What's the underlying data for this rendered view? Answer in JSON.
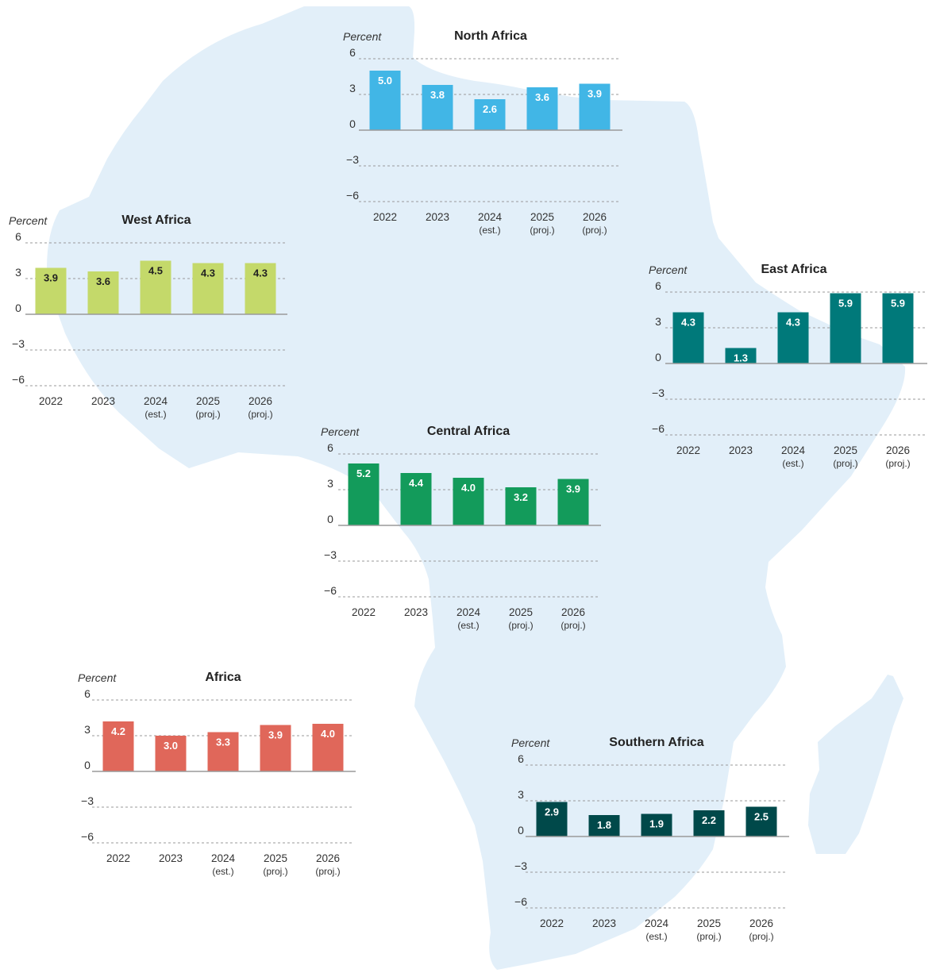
{
  "map": {
    "fill": "#e2eff9",
    "label": ""
  },
  "chart_data": [
    {
      "type": "bar",
      "title": "North Africa",
      "ylabel": "Percent",
      "ylim": [
        -6,
        6
      ],
      "yticks": [
        "6",
        "3",
        "0",
        "−3",
        "−6"
      ],
      "categories": [
        "2022",
        "2023",
        "2024",
        "2025",
        "2026"
      ],
      "category_notes": [
        "",
        "",
        "(est.)",
        "(proj.)",
        "(proj.)"
      ],
      "values": [
        5.0,
        3.8,
        2.6,
        3.6,
        3.9
      ],
      "value_labels": [
        "5.0",
        "3.8",
        "2.6",
        "3.6",
        "3.9"
      ],
      "color": "#41b6e6",
      "label_color": "#ffffff"
    },
    {
      "type": "bar",
      "title": "West Africa",
      "ylabel": "Percent",
      "ylim": [
        -6,
        6
      ],
      "yticks": [
        "6",
        "3",
        "0",
        "−3",
        "−6"
      ],
      "categories": [
        "2022",
        "2023",
        "2024",
        "2025",
        "2026"
      ],
      "category_notes": [
        "",
        "",
        "(est.)",
        "(proj.)",
        "(proj.)"
      ],
      "values": [
        3.9,
        3.6,
        4.5,
        4.3,
        4.3
      ],
      "value_labels": [
        "3.9",
        "3.6",
        "4.5",
        "4.3",
        "4.3"
      ],
      "color": "#c4d96a",
      "label_color": "#222222"
    },
    {
      "type": "bar",
      "title": "East Africa",
      "ylabel": "Percent",
      "ylim": [
        -6,
        6
      ],
      "yticks": [
        "6",
        "3",
        "0",
        "−3",
        "−6"
      ],
      "categories": [
        "2022",
        "2023",
        "2024",
        "2025",
        "2026"
      ],
      "category_notes": [
        "",
        "",
        "(est.)",
        "(proj.)",
        "(proj.)"
      ],
      "values": [
        4.3,
        1.3,
        4.3,
        5.9,
        5.9
      ],
      "value_labels": [
        "4.3",
        "1.3",
        "4.3",
        "5.9",
        "5.9"
      ],
      "color": "#00797a",
      "label_color": "#ffffff"
    },
    {
      "type": "bar",
      "title": "Central Africa",
      "ylabel": "Percent",
      "ylim": [
        -6,
        6
      ],
      "yticks": [
        "6",
        "3",
        "0",
        "−3",
        "−6"
      ],
      "categories": [
        "2022",
        "2023",
        "2024",
        "2025",
        "2026"
      ],
      "category_notes": [
        "",
        "",
        "(est.)",
        "(proj.)",
        "(proj.)"
      ],
      "values": [
        5.2,
        4.4,
        4.0,
        3.2,
        3.9
      ],
      "value_labels": [
        "5.2",
        "4.4",
        "4.0",
        "3.2",
        "3.9"
      ],
      "color": "#139b5b",
      "label_color": "#ffffff"
    },
    {
      "type": "bar",
      "title": "Africa",
      "ylabel": "Percent",
      "ylim": [
        -6,
        6
      ],
      "yticks": [
        "6",
        "3",
        "0",
        "−3",
        "−6"
      ],
      "categories": [
        "2022",
        "2023",
        "2024",
        "2025",
        "2026"
      ],
      "category_notes": [
        "",
        "",
        "(est.)",
        "(proj.)",
        "(proj.)"
      ],
      "values": [
        4.2,
        3.0,
        3.3,
        3.9,
        4.0
      ],
      "value_labels": [
        "4.2",
        "3.0",
        "3.3",
        "3.9",
        "4.0"
      ],
      "color": "#e0675a",
      "label_color": "#ffffff"
    },
    {
      "type": "bar",
      "title": "Southern Africa",
      "ylabel": "Percent",
      "ylim": [
        -6,
        6
      ],
      "yticks": [
        "6",
        "3",
        "0",
        "−3",
        "−6"
      ],
      "categories": [
        "2022",
        "2023",
        "2024",
        "2025",
        "2026"
      ],
      "category_notes": [
        "",
        "",
        "(est.)",
        "(proj.)",
        "(proj.)"
      ],
      "values": [
        2.9,
        1.8,
        1.9,
        2.2,
        2.5
      ],
      "value_labels": [
        "2.9",
        "1.8",
        "1.9",
        "2.2",
        "2.5"
      ],
      "color": "#00494a",
      "label_color": "#ffffff"
    }
  ]
}
